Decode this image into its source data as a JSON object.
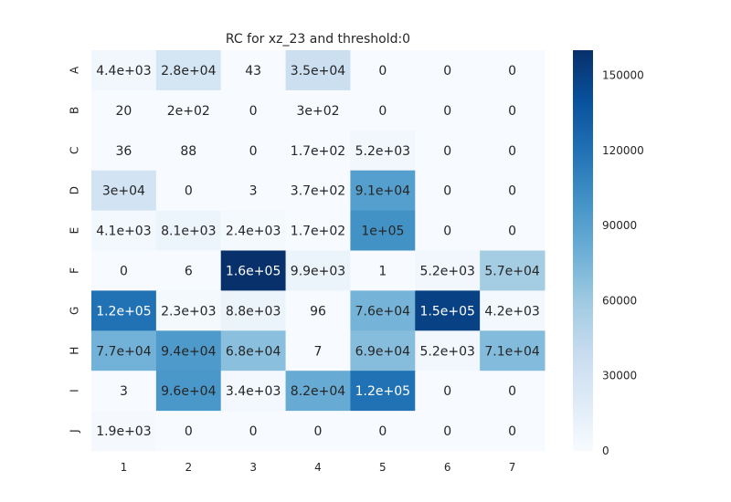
{
  "chart_data": {
    "type": "heatmap",
    "title": "RC  for xz_23 and threshold:0",
    "xlabel": "",
    "ylabel": "",
    "x_categories": [
      "1",
      "2",
      "3",
      "4",
      "5",
      "6",
      "7"
    ],
    "y_categories": [
      "A",
      "B",
      "C",
      "D",
      "E",
      "F",
      "G",
      "H",
      "I",
      "J"
    ],
    "values": [
      [
        4400,
        28000,
        43,
        35000,
        0,
        0,
        0
      ],
      [
        20,
        200,
        0,
        300,
        0,
        0,
        0
      ],
      [
        36,
        88,
        0,
        170,
        5200,
        0,
        0
      ],
      [
        30000,
        0,
        3,
        370,
        91000,
        0,
        0
      ],
      [
        4100,
        8100,
        2400,
        170,
        100000,
        0,
        0
      ],
      [
        0,
        6,
        160000,
        9900,
        1,
        5200,
        57000
      ],
      [
        120000,
        2300,
        8800,
        96,
        76000,
        150000,
        4200
      ],
      [
        77000,
        94000,
        68000,
        7,
        69000,
        5200,
        71000
      ],
      [
        3,
        96000,
        3400,
        82000,
        120000,
        0,
        0
      ],
      [
        1900,
        0,
        0,
        0,
        0,
        0,
        0
      ]
    ],
    "annotations": [
      [
        "4.4e+03",
        "2.8e+04",
        "43",
        "3.5e+04",
        "0",
        "0",
        "0"
      ],
      [
        "20",
        "2e+02",
        "0",
        "3e+02",
        "0",
        "0",
        "0"
      ],
      [
        "36",
        "88",
        "0",
        "1.7e+02",
        "5.2e+03",
        "0",
        "0"
      ],
      [
        "3e+04",
        "0",
        "3",
        "3.7e+02",
        "9.1e+04",
        "0",
        "0"
      ],
      [
        "4.1e+03",
        "8.1e+03",
        "2.4e+03",
        "1.7e+02",
        "1e+05",
        "0",
        "0"
      ],
      [
        "0",
        "6",
        "1.6e+05",
        "9.9e+03",
        "1",
        "5.2e+03",
        "5.7e+04"
      ],
      [
        "1.2e+05",
        "2.3e+03",
        "8.8e+03",
        "96",
        "7.6e+04",
        "1.5e+05",
        "4.2e+03"
      ],
      [
        "7.7e+04",
        "9.4e+04",
        "6.8e+04",
        "7",
        "6.9e+04",
        "5.2e+03",
        "7.1e+04"
      ],
      [
        "3",
        "9.6e+04",
        "3.4e+03",
        "8.2e+04",
        "1.2e+05",
        "0",
        "0"
      ],
      [
        "1.9e+03",
        "0",
        "0",
        "0",
        "0",
        "0",
        "0"
      ]
    ],
    "colorbar": {
      "range": [
        0,
        160000
      ],
      "ticks": [
        0,
        30000,
        60000,
        90000,
        120000,
        150000
      ],
      "tick_labels": [
        "0",
        "30000",
        "60000",
        "90000",
        "120000",
        "150000"
      ],
      "colormap": "Blues",
      "colors": [
        "#f7fbff",
        "#deebf7",
        "#c6dbef",
        "#9ecae1",
        "#6baed6",
        "#4292c6",
        "#2171b5",
        "#08519c",
        "#08306b"
      ]
    },
    "grid": false
  }
}
